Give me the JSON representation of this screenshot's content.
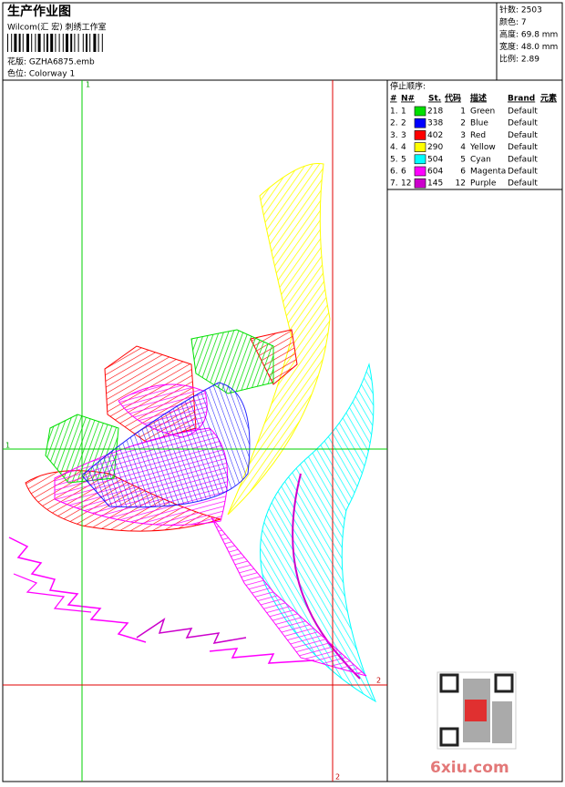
{
  "header": {
    "title": "生产作业图",
    "studio": "Wilcom(汇 宏) 刺绣工作室",
    "design": "花版:  GZHA6875.emb",
    "colorway": "色位:  Colorway 1"
  },
  "info": [
    "针数: 2503",
    "颜色: 7",
    "高度: 69.8 mm",
    "宽度: 48.0 mm",
    "比例: 2.89"
  ],
  "stop_sequence": {
    "title": "停止顺序:",
    "columns": [
      "#",
      "N#",
      "St.",
      "代码",
      "描述",
      "Brand",
      "元素"
    ],
    "rows": [
      {
        "num": "1.",
        "needle": "1",
        "stitches": "218",
        "code": "1",
        "description": "Green",
        "brand": "Default",
        "color": "#00e000"
      },
      {
        "num": "2.",
        "needle": "2",
        "stitches": "338",
        "code": "2",
        "description": "Blue",
        "brand": "Default",
        "color": "#0000ff"
      },
      {
        "num": "3.",
        "needle": "3",
        "stitches": "402",
        "code": "3",
        "description": "Red",
        "brand": "Default",
        "color": "#ff0000"
      },
      {
        "num": "4.",
        "needle": "4",
        "stitches": "290",
        "code": "4",
        "description": "Yellow",
        "brand": "Default",
        "color": "#ffff00"
      },
      {
        "num": "5.",
        "needle": "5",
        "stitches": "504",
        "code": "5",
        "description": "Cyan",
        "brand": "Default",
        "color": "#00ffff"
      },
      {
        "num": "6.",
        "needle": "6",
        "stitches": "604",
        "code": "6",
        "description": "Magenta",
        "brand": "Default",
        "color": "#ff00ff"
      },
      {
        "num": "7.",
        "needle": "12",
        "stitches": "145",
        "code": "12",
        "description": "Purple",
        "brand": "Default",
        "color": "#cc00cc"
      }
    ]
  },
  "guides": {
    "green_label_top": "1",
    "green_label_left": "1",
    "red_label_bottom": "2",
    "red_label_right": "2"
  },
  "watermark": "6xiu.com"
}
